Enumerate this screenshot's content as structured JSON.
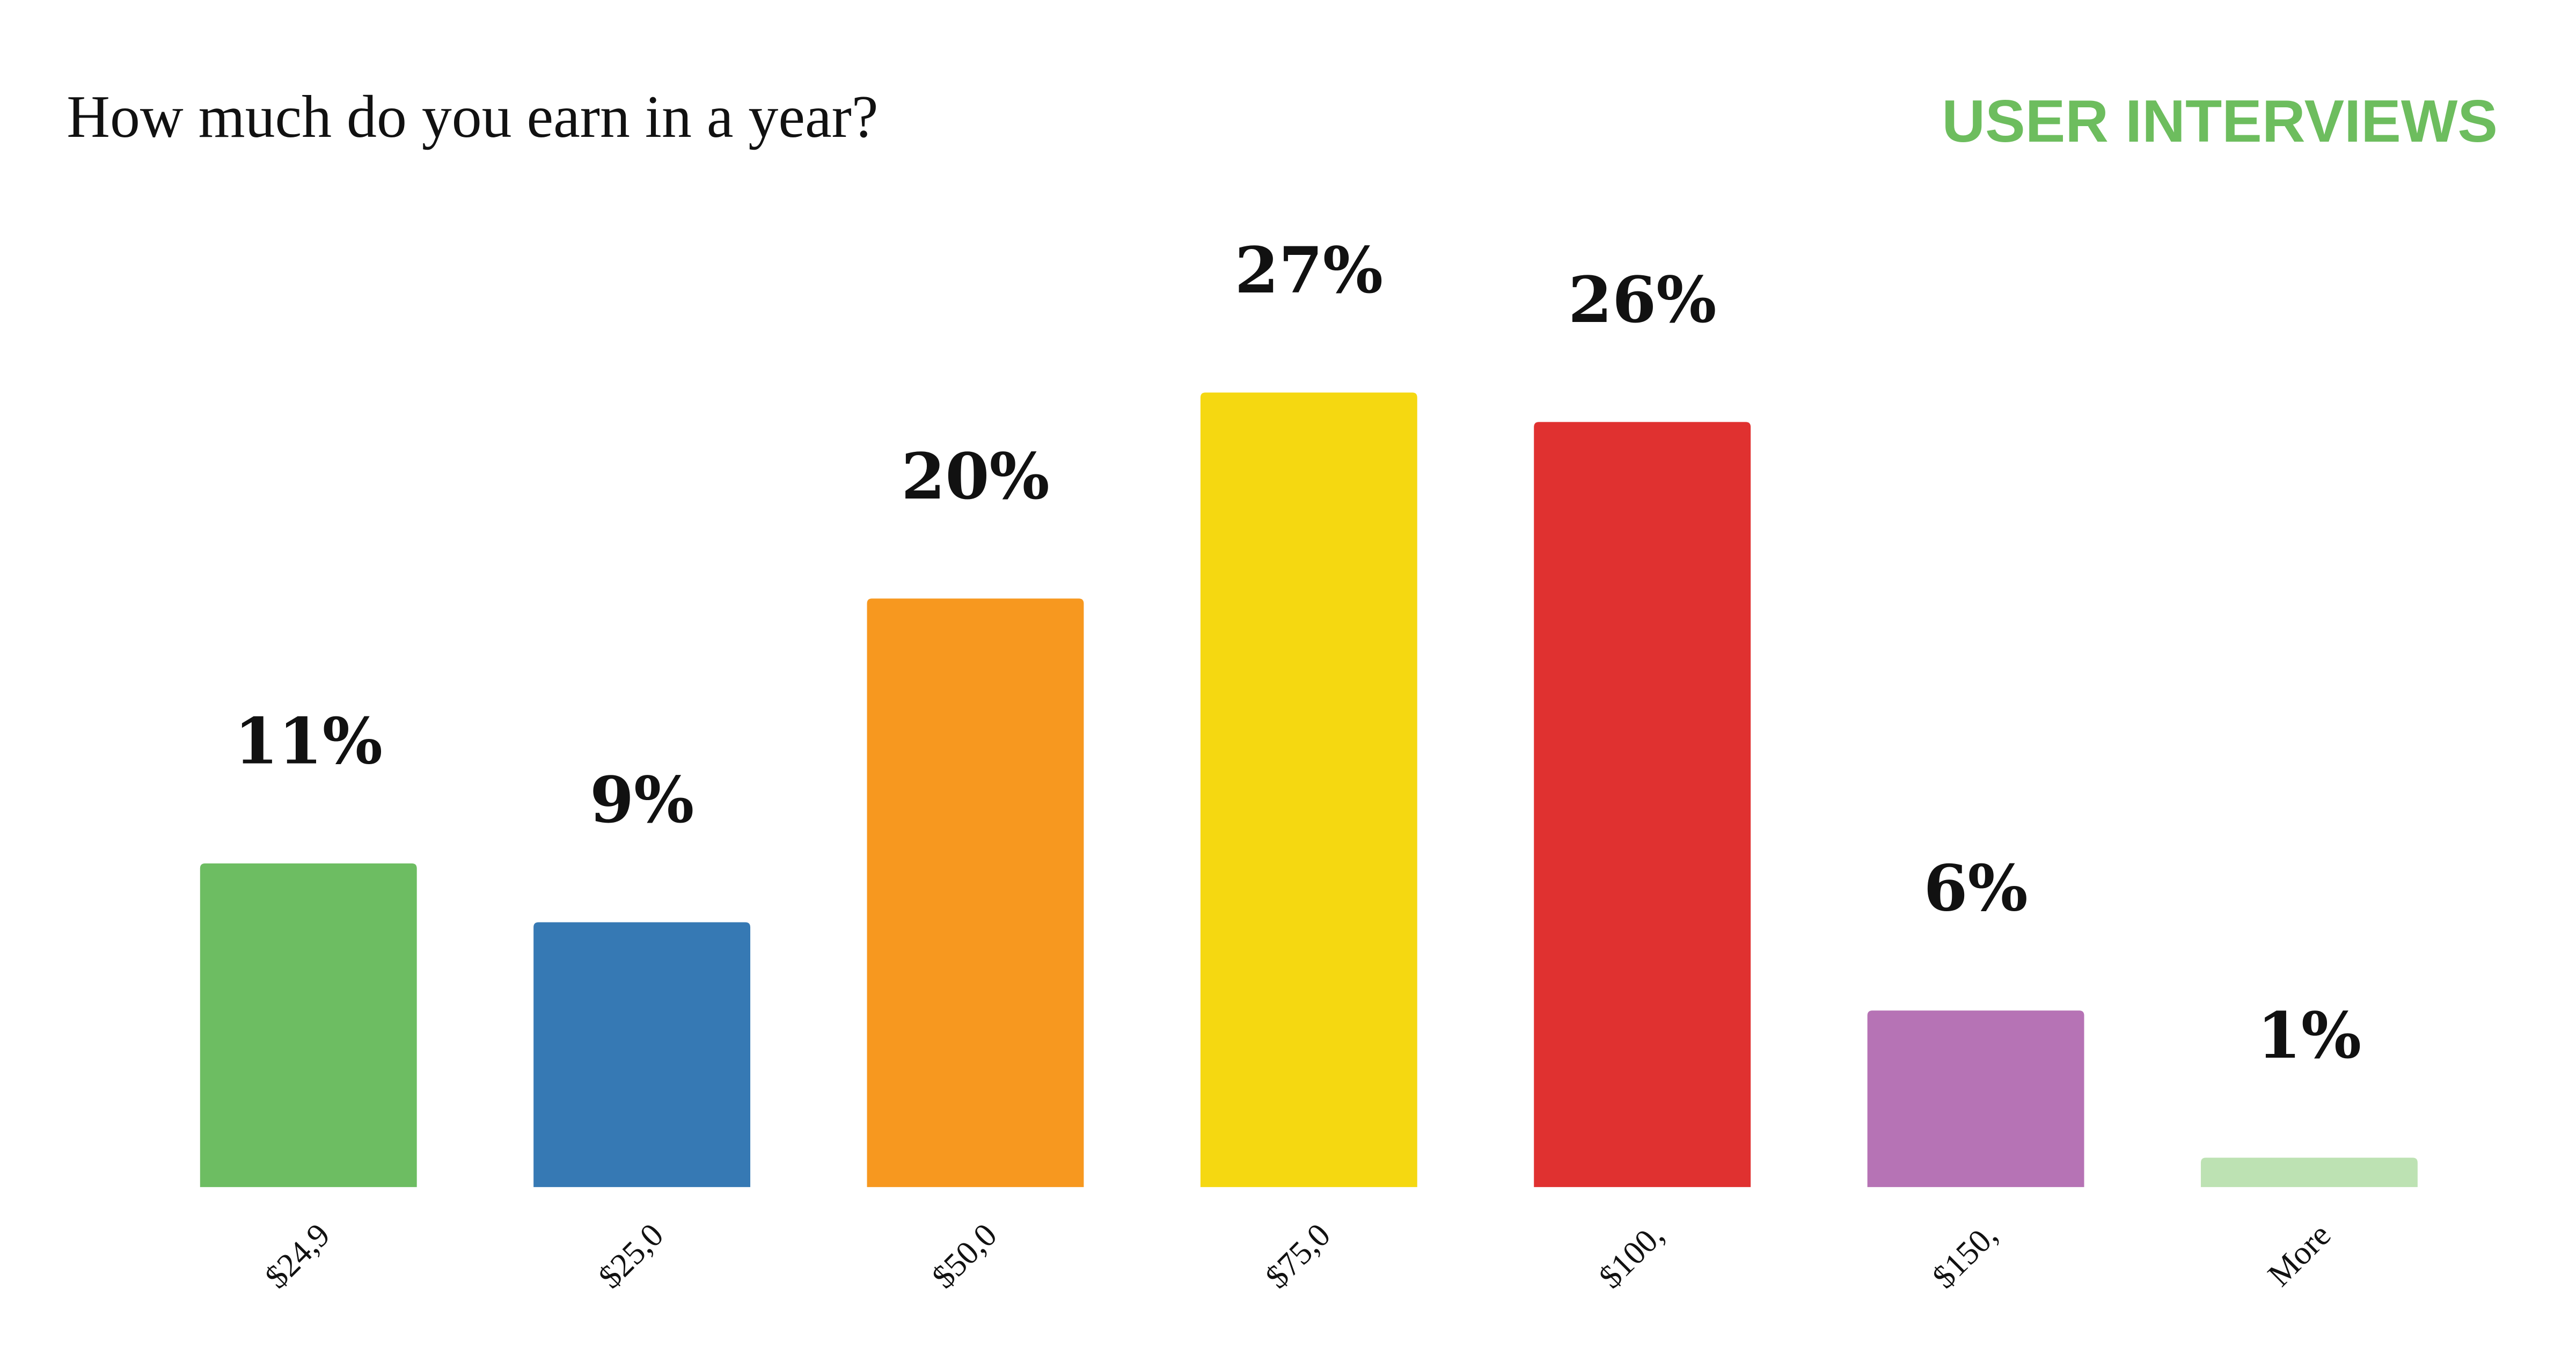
{
  "chart_data": {
    "type": "bar",
    "title": "How much do you earn in a year?",
    "brand": "USER INTERVIEWS",
    "categories": [
      "$24,9",
      "$25,0",
      "$50,0",
      "$75,0",
      "$100,",
      "$150,",
      "More"
    ],
    "values": [
      11,
      9,
      20,
      27,
      26,
      6,
      1
    ],
    "value_labels": [
      "11%",
      "9%",
      "20%",
      "27%",
      "26%",
      "6%",
      "1%"
    ],
    "colors": [
      "#6dbd62",
      "#3679b4",
      "#f7981f",
      "#f5d811",
      "#e03130",
      "#b673b5",
      "#bde2b3"
    ]
  }
}
